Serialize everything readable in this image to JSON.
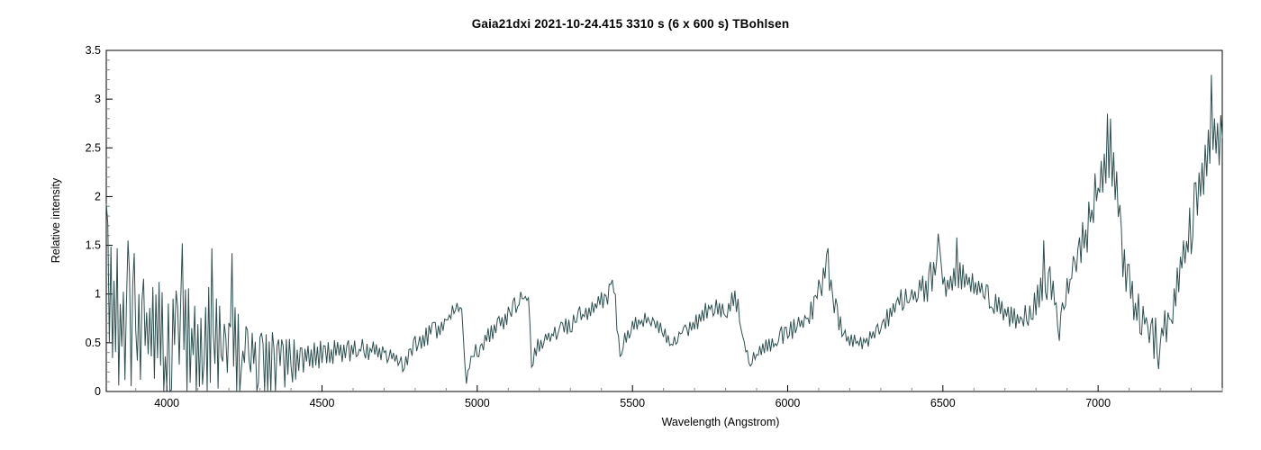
{
  "page": {
    "background": "#ffffff"
  },
  "chart_data": {
    "type": "line",
    "title": "Gaia21dxi  2021-10-24.415  3310 s (6 x 600 s)  TBohlsen",
    "xlabel": "Wavelength (Angstrom)",
    "ylabel": "Relative intensity",
    "xlim": [
      3805,
      7400
    ],
    "ylim": [
      0,
      3.5
    ],
    "x_major_ticks": [
      4000,
      4500,
      5000,
      5500,
      6000,
      6500,
      7000
    ],
    "x_minor_step": 100,
    "y_major_ticks": [
      0,
      0.5,
      1,
      1.5,
      2,
      2.5,
      3,
      3.5
    ],
    "y_minor_step": 0.1,
    "grid": false,
    "legend": "none",
    "line_color": "#2e4f4f",
    "axis_color": "#000000",
    "minor_tick_color": "#8a8a8a",
    "noise_seed": 1337,
    "sample_step_angstrom": 5,
    "series": [
      {
        "name": "Gaia21dxi spectrum",
        "anchors_wavelength_mean_noise": [
          [
            3805,
            1.6,
            0.35
          ],
          [
            3815,
            0.95,
            0.85
          ],
          [
            3855,
            0.72,
            0.72
          ],
          [
            3915,
            0.55,
            0.62
          ],
          [
            3985,
            0.55,
            0.65
          ],
          [
            4055,
            0.5,
            0.72
          ],
          [
            4145,
            0.45,
            0.68
          ],
          [
            4215,
            0.4,
            0.55
          ],
          [
            4290,
            0.35,
            0.45
          ],
          [
            4355,
            0.3,
            0.33
          ],
          [
            4420,
            0.33,
            0.2
          ],
          [
            4500,
            0.38,
            0.14
          ],
          [
            4570,
            0.41,
            0.12
          ],
          [
            4640,
            0.43,
            0.11
          ],
          [
            4700,
            0.41,
            0.1
          ],
          [
            4737,
            0.34,
            0.09
          ],
          [
            4764,
            0.27,
            0.08
          ],
          [
            4800,
            0.48,
            0.1
          ],
          [
            4840,
            0.57,
            0.1
          ],
          [
            4880,
            0.66,
            0.1
          ],
          [
            4915,
            0.78,
            0.1
          ],
          [
            4947,
            0.92,
            0.06
          ],
          [
            4957,
            0.45,
            0.1
          ],
          [
            4964,
            0.11,
            0.05
          ],
          [
            4982,
            0.38,
            0.08
          ],
          [
            5008,
            0.44,
            0.09
          ],
          [
            5045,
            0.6,
            0.1
          ],
          [
            5085,
            0.72,
            0.1
          ],
          [
            5125,
            0.88,
            0.12
          ],
          [
            5152,
            1.02,
            0.09
          ],
          [
            5166,
            0.9,
            0.08
          ],
          [
            5175,
            0.28,
            0.06
          ],
          [
            5192,
            0.46,
            0.08
          ],
          [
            5222,
            0.55,
            0.08
          ],
          [
            5260,
            0.63,
            0.1
          ],
          [
            5300,
            0.7,
            0.1
          ],
          [
            5340,
            0.78,
            0.12
          ],
          [
            5380,
            0.86,
            0.12
          ],
          [
            5415,
            0.95,
            0.12
          ],
          [
            5440,
            1.1,
            0.1
          ],
          [
            5450,
            0.72,
            0.1
          ],
          [
            5459,
            0.38,
            0.06
          ],
          [
            5477,
            0.56,
            0.08
          ],
          [
            5502,
            0.68,
            0.08
          ],
          [
            5540,
            0.74,
            0.08
          ],
          [
            5580,
            0.7,
            0.08
          ],
          [
            5618,
            0.52,
            0.07
          ],
          [
            5655,
            0.57,
            0.07
          ],
          [
            5690,
            0.66,
            0.08
          ],
          [
            5720,
            0.76,
            0.09
          ],
          [
            5748,
            0.88,
            0.1
          ],
          [
            5778,
            0.85,
            0.1
          ],
          [
            5806,
            0.81,
            0.1
          ],
          [
            5832,
            0.98,
            0.13
          ],
          [
            5850,
            0.7,
            0.1
          ],
          [
            5870,
            0.38,
            0.08
          ],
          [
            5888,
            0.33,
            0.07
          ],
          [
            5912,
            0.42,
            0.08
          ],
          [
            5942,
            0.5,
            0.1
          ],
          [
            5975,
            0.57,
            0.1
          ],
          [
            6010,
            0.63,
            0.1
          ],
          [
            6045,
            0.7,
            0.12
          ],
          [
            6080,
            0.86,
            0.14
          ],
          [
            6105,
            1.05,
            0.18
          ],
          [
            6128,
            1.28,
            0.18
          ],
          [
            6145,
            1.0,
            0.14
          ],
          [
            6165,
            0.72,
            0.1
          ],
          [
            6190,
            0.55,
            0.08
          ],
          [
            6218,
            0.5,
            0.08
          ],
          [
            6248,
            0.52,
            0.08
          ],
          [
            6278,
            0.58,
            0.09
          ],
          [
            6308,
            0.68,
            0.1
          ],
          [
            6342,
            0.85,
            0.12
          ],
          [
            6376,
            0.97,
            0.12
          ],
          [
            6412,
            1.02,
            0.13
          ],
          [
            6450,
            1.1,
            0.18
          ],
          [
            6487,
            1.28,
            0.22
          ],
          [
            6510,
            1.08,
            0.14
          ],
          [
            6545,
            1.25,
            0.2
          ],
          [
            6572,
            1.13,
            0.13
          ],
          [
            6605,
            1.09,
            0.12
          ],
          [
            6642,
            1.0,
            0.12
          ],
          [
            6680,
            0.86,
            0.12
          ],
          [
            6716,
            0.76,
            0.12
          ],
          [
            6755,
            0.72,
            0.12
          ],
          [
            6795,
            0.9,
            0.15
          ],
          [
            6830,
            1.15,
            0.2
          ],
          [
            6858,
            1.05,
            0.18
          ],
          [
            6873,
            0.62,
            0.1
          ],
          [
            6893,
            1.0,
            0.15
          ],
          [
            6920,
            1.25,
            0.2
          ],
          [
            6950,
            1.5,
            0.25
          ],
          [
            6980,
            1.85,
            0.28
          ],
          [
            7010,
            2.15,
            0.32
          ],
          [
            7035,
            2.42,
            0.35
          ],
          [
            7058,
            2.2,
            0.33
          ],
          [
            7078,
            1.45,
            0.25
          ],
          [
            7105,
            1.0,
            0.22
          ],
          [
            7135,
            0.78,
            0.22
          ],
          [
            7165,
            0.6,
            0.2
          ],
          [
            7196,
            0.5,
            0.24
          ],
          [
            7228,
            0.8,
            0.25
          ],
          [
            7258,
            1.15,
            0.28
          ],
          [
            7290,
            1.55,
            0.3
          ],
          [
            7320,
            2.0,
            0.32
          ],
          [
            7348,
            2.3,
            0.32
          ],
          [
            7372,
            2.6,
            0.35
          ],
          [
            7400,
            2.7,
            0.35
          ]
        ],
        "notable_peaks": [
          [
            3805,
            1.93
          ],
          [
            3875,
            1.55
          ],
          [
            3895,
            1.42
          ],
          [
            4052,
            1.52
          ],
          [
            4145,
            1.47
          ],
          [
            4209,
            1.42
          ],
          [
            6131,
            1.47
          ],
          [
            6487,
            1.62
          ],
          [
            6545,
            1.58
          ],
          [
            6826,
            1.55
          ],
          [
            7032,
            2.85
          ],
          [
            7040,
            2.8
          ],
          [
            7365,
            3.25
          ]
        ],
        "notable_troughs": [
          [
            4963,
            0.08
          ],
          [
            5174,
            0.25
          ],
          [
            5458,
            0.36
          ],
          [
            5882,
            0.26
          ],
          [
            6873,
            0.52
          ],
          [
            7197,
            0.23
          ]
        ]
      }
    ]
  }
}
